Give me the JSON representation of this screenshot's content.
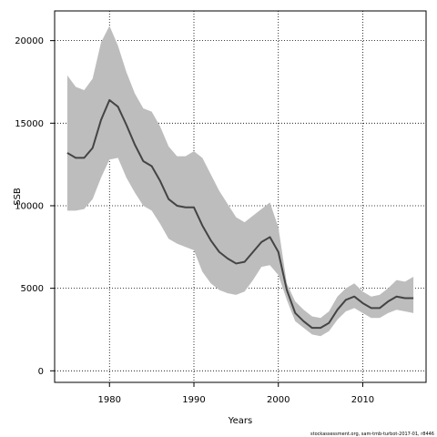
{
  "chart_data": {
    "type": "line",
    "title": "",
    "xlabel": "Years",
    "ylabel": "SSB",
    "xlim": [
      1973.5,
      2017.5
    ],
    "ylim": [
      -700,
      21800
    ],
    "x_ticks": [
      1980,
      1990,
      2000,
      2010
    ],
    "y_ticks": [
      0,
      5000,
      10000,
      15000,
      20000
    ],
    "grid": "dotted",
    "x": [
      1975,
      1976,
      1977,
      1978,
      1979,
      1980,
      1981,
      1982,
      1983,
      1984,
      1985,
      1986,
      1987,
      1988,
      1989,
      1990,
      1991,
      1992,
      1993,
      1994,
      1995,
      1996,
      1997,
      1998,
      1999,
      2000,
      2001,
      2002,
      2003,
      2004,
      2005,
      2006,
      2007,
      2008,
      2009,
      2010,
      2011,
      2012,
      2013,
      2014,
      2015,
      2016
    ],
    "series": [
      {
        "role": "estimate",
        "values": [
          13200,
          12900,
          12900,
          13500,
          15200,
          16400,
          16000,
          14900,
          13700,
          12700,
          12400,
          11500,
          10400,
          10000,
          9900,
          9900,
          8800,
          7900,
          7200,
          6800,
          6500,
          6600,
          7200,
          7800,
          8100,
          7200,
          4900,
          3500,
          3000,
          2600,
          2600,
          2900,
          3700,
          4300,
          4500,
          4100,
          3800,
          3800,
          4200,
          4500,
          4400,
          4400
        ],
        "color": "#444444"
      },
      {
        "role": "upper",
        "values": [
          17900,
          17200,
          17000,
          17700,
          19900,
          20900,
          19700,
          18100,
          16800,
          15900,
          15700,
          14800,
          13600,
          13000,
          13000,
          13300,
          12900,
          11900,
          10900,
          10100,
          9300,
          9000,
          9400,
          9800,
          10200,
          8700,
          5300,
          4200,
          3700,
          3300,
          3200,
          3600,
          4500,
          5000,
          5300,
          4800,
          4500,
          4600,
          5000,
          5500,
          5400,
          5700
        ],
        "color": "#bdbdbd"
      },
      {
        "role": "lower",
        "values": [
          9700,
          9700,
          9800,
          10400,
          11700,
          12800,
          12900,
          11700,
          10800,
          10000,
          9700,
          8900,
          8000,
          7700,
          7500,
          7300,
          6000,
          5300,
          4900,
          4700,
          4600,
          4800,
          5500,
          6300,
          6400,
          5800,
          4300,
          3000,
          2600,
          2200,
          2100,
          2400,
          3100,
          3600,
          3800,
          3500,
          3200,
          3200,
          3500,
          3700,
          3600,
          3500
        ],
        "color": "#bdbdbd"
      }
    ]
  },
  "credit": "stockassessment.org, sam-tmb-turbot-2017-01, r8446"
}
